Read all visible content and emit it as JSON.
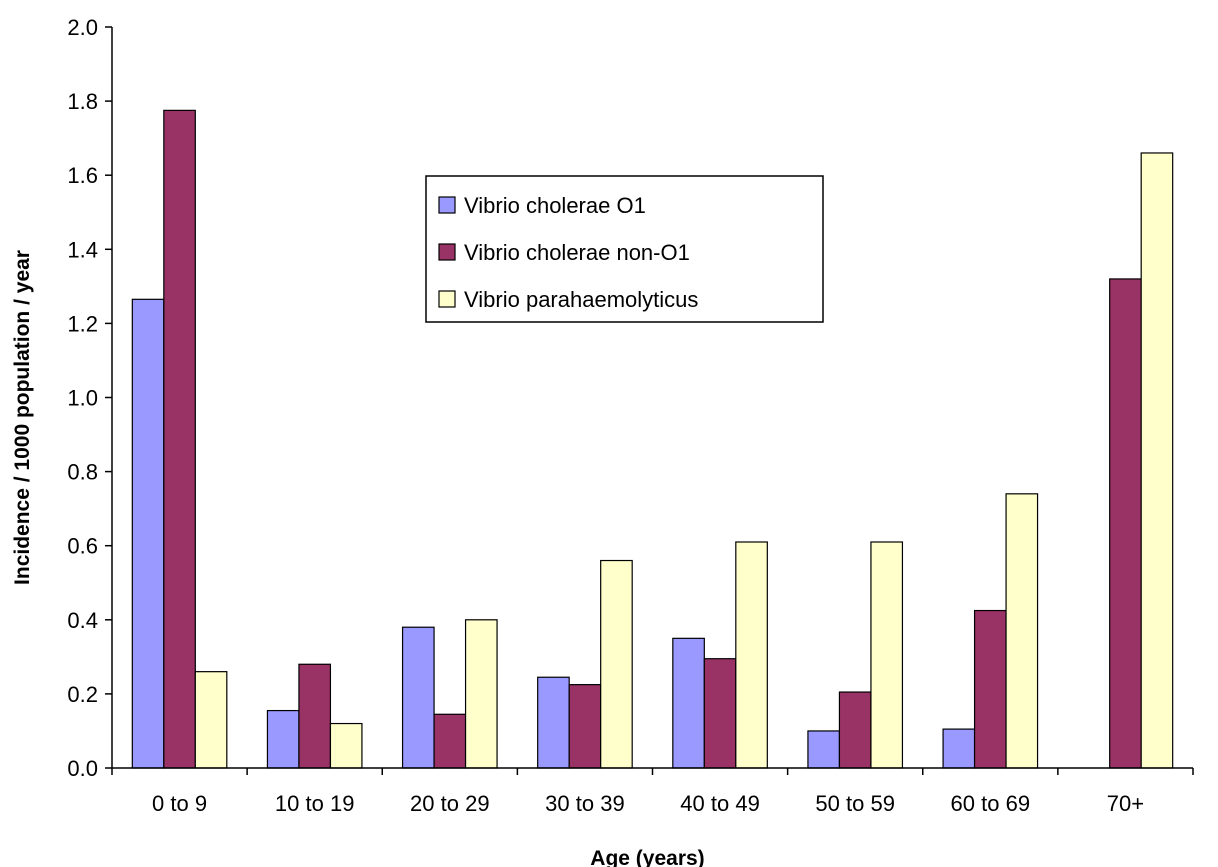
{
  "chart_data": {
    "type": "bar",
    "title": "",
    "xlabel": "Age (years)",
    "ylabel": "Incidence / 1000 population / year",
    "ylim": [
      0,
      2.0
    ],
    "yticks": [
      "0.0",
      "0.2",
      "0.4",
      "0.6",
      "0.8",
      "1.0",
      "1.2",
      "1.4",
      "1.6",
      "1.8",
      "2.0"
    ],
    "categories": [
      "0 to 9",
      "10 to 19",
      "20 to 29",
      "30 to 39",
      "40 to 49",
      "50 to 59",
      "60 to 69",
      "70+"
    ],
    "series": [
      {
        "name": "Vibrio cholerae O1",
        "color": "#9999ff",
        "values": [
          1.265,
          0.155,
          0.38,
          0.245,
          0.35,
          0.1,
          0.105,
          0
        ]
      },
      {
        "name": "Vibrio cholerae non-O1",
        "color": "#993366",
        "values": [
          1.775,
          0.28,
          0.145,
          0.225,
          0.295,
          0.205,
          0.425,
          1.32
        ]
      },
      {
        "name": "Vibrio parahaemolyticus",
        "color": "#ffffcc",
        "values": [
          0.26,
          0.12,
          0.4,
          0.56,
          0.61,
          0.61,
          0.74,
          1.66
        ]
      }
    ],
    "grid": false,
    "legend_position": "top-center"
  }
}
